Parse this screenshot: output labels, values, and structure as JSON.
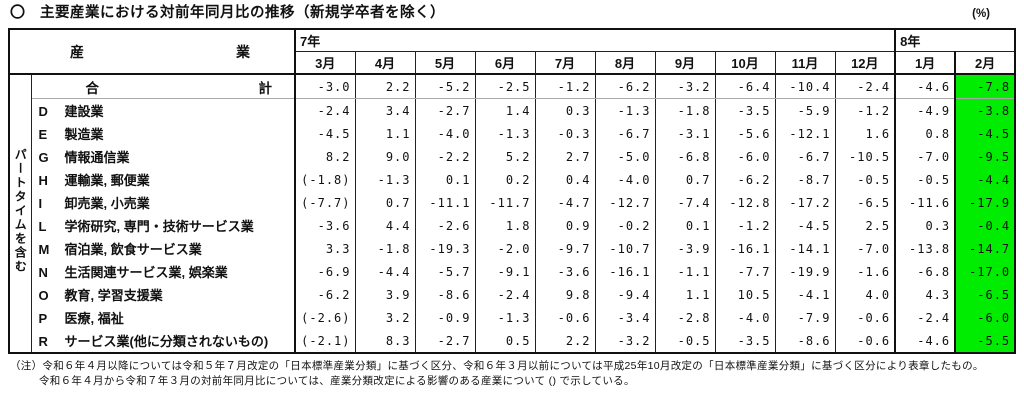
{
  "title_marker": "〇",
  "title": "主要産業における対前年同月比の推移（新規学卒者を除く）",
  "unit": "(%)",
  "table": {
    "header": {
      "industry_left": "産",
      "industry_right": "業",
      "year1": "7年",
      "year2": "8年"
    },
    "months": [
      "3月",
      "4月",
      "5月",
      "6月",
      "7月",
      "8月",
      "9月",
      "10月",
      "11月",
      "12月",
      "1月",
      "2月"
    ],
    "side_label": "パートタイムを含む",
    "highlight_color": "#00EC00",
    "total_row": {
      "name_left": "合",
      "name_right": "計",
      "values": [
        "-3.0",
        "2.2",
        "-5.2",
        "-2.5",
        "-1.2",
        "-6.2",
        "-3.2",
        "-6.4",
        "-10.4",
        "-2.4",
        "-4.6",
        "-7.8"
      ]
    },
    "rows": [
      {
        "code": "D",
        "name": "建設業",
        "values": [
          "-2.4",
          "3.4",
          "-2.7",
          "1.4",
          "0.3",
          "-1.3",
          "-1.8",
          "-3.5",
          "-5.9",
          "-1.2",
          "-4.9",
          "-3.8"
        ]
      },
      {
        "code": "E",
        "name": "製造業",
        "values": [
          "-4.5",
          "1.1",
          "-4.0",
          "-1.3",
          "-0.3",
          "-6.7",
          "-3.1",
          "-5.6",
          "-12.1",
          "1.6",
          "0.8",
          "-4.5"
        ]
      },
      {
        "code": "G",
        "name": "情報通信業",
        "values": [
          "8.2",
          "9.0",
          "-2.2",
          "5.2",
          "2.7",
          "-5.0",
          "-6.8",
          "-6.0",
          "-6.7",
          "-10.5",
          "-7.0",
          "-9.5"
        ]
      },
      {
        "code": "H",
        "name": "運輸業, 郵便業",
        "values": [
          "(-1.8)",
          "-1.3",
          "0.1",
          "0.2",
          "0.4",
          "-4.0",
          "0.7",
          "-6.2",
          "-8.7",
          "-0.5",
          "-0.5",
          "-4.4"
        ]
      },
      {
        "code": "I",
        "name": "卸売業, 小売業",
        "values": [
          "(-7.7)",
          "0.7",
          "-11.1",
          "-11.7",
          "-4.7",
          "-12.7",
          "-7.4",
          "-12.8",
          "-17.2",
          "-6.5",
          "-11.6",
          "-17.9"
        ]
      },
      {
        "code": "L",
        "name": "学術研究, 専門・技術サービス業",
        "values": [
          "-3.6",
          "4.4",
          "-2.6",
          "1.8",
          "0.9",
          "-0.2",
          "0.1",
          "-1.2",
          "-4.5",
          "2.5",
          "0.3",
          "-0.4"
        ]
      },
      {
        "code": "M",
        "name": "宿泊業, 飲食サービス業",
        "values": [
          "3.3",
          "-1.8",
          "-19.3",
          "-2.0",
          "-9.7",
          "-10.7",
          "-3.9",
          "-16.1",
          "-14.1",
          "-7.0",
          "-13.8",
          "-14.7"
        ]
      },
      {
        "code": "N",
        "name": "生活関連サービス業, 娯楽業",
        "values": [
          "-6.9",
          "-4.4",
          "-5.7",
          "-9.1",
          "-3.6",
          "-16.1",
          "-1.1",
          "-7.7",
          "-19.9",
          "-1.6",
          "-6.8",
          "-17.0"
        ]
      },
      {
        "code": "O",
        "name": "教育, 学習支援業",
        "values": [
          "-6.2",
          "3.9",
          "-8.6",
          "-2.4",
          "9.8",
          "-9.4",
          "1.1",
          "10.5",
          "-4.1",
          "4.0",
          "4.3",
          "-6.5"
        ]
      },
      {
        "code": "P",
        "name": "医療, 福祉",
        "values": [
          "(-2.6)",
          "3.2",
          "-0.9",
          "-1.3",
          "-0.6",
          "-3.4",
          "-2.8",
          "-4.0",
          "-7.9",
          "-0.6",
          "-2.4",
          "-6.0"
        ]
      },
      {
        "code": "R",
        "name": "サービス業(他に分類されないもの)",
        "values": [
          "(-2.1)",
          "8.3",
          "-2.7",
          "0.5",
          "2.2",
          "-3.2",
          "-0.5",
          "-3.5",
          "-8.6",
          "-0.6",
          "-4.6",
          "-5.5"
        ]
      }
    ]
  },
  "notes": [
    "（注）令和６年４月以降については令和５年７月改定の「日本標準産業分類」に基づく区分、令和６年３月以前については平成25年10月改定の「日本標準産業分類」に基づく区分により表章したもの。",
    "令和６年４月から令和７年３月の対前年同月比については、産業分類改定による影響のある産業について () で示している。"
  ]
}
